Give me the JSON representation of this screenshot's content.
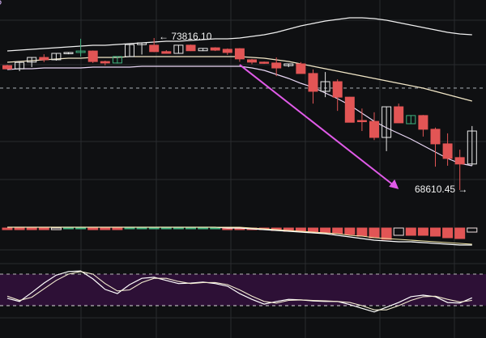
{
  "corner_label": "5",
  "colors": {
    "background": "#0f1012",
    "grid": "#2a2b2f",
    "up": "#3fb27f",
    "down": "#e25555",
    "band": "#f0f0f0",
    "arrow": "#e05ae8",
    "stoch_fill": "#2d1036"
  },
  "chart_data": {
    "type": "candlestick",
    "title": "",
    "price_range": [
      68000,
      75000
    ],
    "high_label": "← 73816.10",
    "low_label": "68610.45 →",
    "high_value": 73816.1,
    "low_value": 68610.45,
    "dashed_level": 72100,
    "candles": [
      [
        72870,
        72900,
        72740,
        72760
      ],
      [
        72760,
        72990,
        72680,
        72980
      ],
      [
        72990,
        73150,
        72820,
        73150
      ],
      [
        73150,
        73260,
        72990,
        73070
      ],
      [
        73070,
        73290,
        73040,
        73290
      ],
      [
        73290,
        73320,
        73260,
        73320
      ],
      [
        73320,
        73790,
        73180,
        73370
      ],
      [
        73370,
        73390,
        72960,
        73010
      ],
      [
        73010,
        73040,
        72880,
        72960
      ],
      [
        72960,
        73180,
        72940,
        73180
      ],
      [
        73180,
        73600,
        73180,
        73590
      ],
      [
        73590,
        73650,
        73250,
        73650
      ],
      [
        73570,
        73816,
        73330,
        73350
      ],
      [
        73350,
        73400,
        73280,
        73290
      ],
      [
        73290,
        73570,
        73290,
        73570
      ],
      [
        73570,
        73590,
        73370,
        73380
      ],
      [
        73380,
        73460,
        73370,
        73460
      ],
      [
        73480,
        73500,
        73370,
        73400
      ],
      [
        73430,
        73460,
        73240,
        73320
      ],
      [
        73450,
        73470,
        73000,
        73100
      ],
      [
        73070,
        73100,
        72920,
        72990
      ],
      [
        72990,
        73010,
        72930,
        72950
      ],
      [
        72960,
        73150,
        72510,
        72790
      ],
      [
        72870,
        72930,
        72820,
        72930
      ],
      [
        72930,
        72990,
        72600,
        72600
      ],
      [
        72600,
        72740,
        71570,
        71990
      ],
      [
        71990,
        72650,
        71790,
        72320
      ],
      [
        72320,
        72400,
        71320,
        71790
      ],
      [
        71790,
        71800,
        70930,
        70930
      ],
      [
        70990,
        71400,
        70630,
        70960
      ],
      [
        70960,
        71270,
        70320,
        70410
      ],
      [
        70410,
        71460,
        69940,
        71460
      ],
      [
        71460,
        71570,
        70910,
        70910
      ],
      [
        70880,
        71160,
        70880,
        71160
      ],
      [
        71160,
        71180,
        70440,
        70690
      ],
      [
        70690,
        70750,
        69410,
        70190
      ],
      [
        70190,
        70550,
        69440,
        69690
      ],
      [
        69720,
        69990,
        68610,
        69500
      ],
      [
        69500,
        70800,
        69440,
        70630
      ]
    ],
    "bollinger": {
      "upper": [
        73373,
        73400,
        73428,
        73456,
        73484,
        73511,
        73539,
        73567,
        73567,
        73594,
        73622,
        73650,
        73678,
        73705,
        73705,
        73733,
        73761,
        73788,
        73788,
        73816,
        73871,
        73927,
        74010,
        74121,
        74232,
        74315,
        74398,
        74453,
        74509,
        74509,
        74481,
        74425,
        74342,
        74259,
        74176,
        74093,
        74010,
        73954,
        73927
      ],
      "middle": [
        72985,
        73013,
        73040,
        73068,
        73096,
        73124,
        73124,
        73151,
        73151,
        73151,
        73179,
        73179,
        73179,
        73179,
        73179,
        73179,
        73179,
        73179,
        73179,
        73179,
        73151,
        73124,
        73068,
        73013,
        72930,
        72847,
        72764,
        72680,
        72597,
        72514,
        72431,
        72348,
        72265,
        72182,
        72099,
        71988,
        71877,
        71766,
        71655
      ],
      "lower": [
        72736,
        72764,
        72764,
        72791,
        72791,
        72791,
        72791,
        72819,
        72819,
        72819,
        72819,
        72847,
        72847,
        72847,
        72847,
        72847,
        72847,
        72847,
        72847,
        72847,
        72791,
        72708,
        72570,
        72431,
        72265,
        72126,
        71932,
        71738,
        71517,
        71240,
        70963,
        70741,
        70547,
        70353,
        70132,
        69910,
        69689,
        69523,
        69440
      ]
    },
    "trend_arrow": {
      "from": [
        19,
        72900
      ],
      "to": [
        32,
        68640
      ]
    },
    "macd": {
      "histogram": [
        -2,
        -2,
        -2,
        -2,
        -1,
        1,
        1,
        -1,
        -1,
        -1,
        1,
        1,
        1,
        1,
        1,
        1,
        1,
        1,
        -1,
        -1,
        -2,
        -2,
        -3,
        -4,
        -4,
        -5,
        -6,
        -7,
        -8,
        -10,
        -12,
        -14,
        -9,
        -9,
        -9,
        -10,
        -12,
        -13,
        -5
      ],
      "macd": [
        1,
        1,
        1,
        1,
        1,
        1,
        1,
        1,
        1,
        1,
        1,
        1,
        1,
        1,
        1,
        1,
        1,
        1,
        0,
        0,
        -1,
        -2,
        -3,
        -4,
        -5,
        -6,
        -7,
        -9,
        -11,
        -13,
        -15,
        -16,
        -17,
        -17,
        -18,
        -19,
        -20,
        -21,
        -21
      ],
      "signal": [
        1,
        1,
        1,
        1,
        1,
        1,
        1,
        1,
        1,
        1,
        1,
        1,
        1,
        1,
        1,
        1,
        1,
        1,
        1,
        1,
        0,
        -1,
        -2,
        -3,
        -4,
        -5,
        -6,
        -7,
        -9,
        -10,
        -12,
        -13,
        -14,
        -15,
        -16,
        -17,
        -18,
        -19,
        -20
      ]
    },
    "stochastic": {
      "upper_level": 80,
      "lower_level": 20,
      "k": [
        34,
        28,
        45,
        63,
        78,
        85,
        86,
        71,
        51,
        43,
        60,
        72,
        74,
        68,
        62,
        63,
        65,
        62,
        57,
        43,
        32,
        23,
        28,
        32,
        31,
        29,
        28,
        28,
        22,
        15,
        8,
        17,
        26,
        37,
        40,
        37,
        26,
        25,
        35
      ],
      "d": [
        38,
        30,
        36,
        52,
        68,
        80,
        85,
        80,
        62,
        48,
        50,
        64,
        72,
        72,
        66,
        62,
        64,
        64,
        60,
        50,
        38,
        28,
        25,
        30,
        31,
        30,
        29,
        28,
        26,
        20,
        12,
        12,
        20,
        30,
        37,
        38,
        32,
        27,
        30
      ]
    }
  }
}
